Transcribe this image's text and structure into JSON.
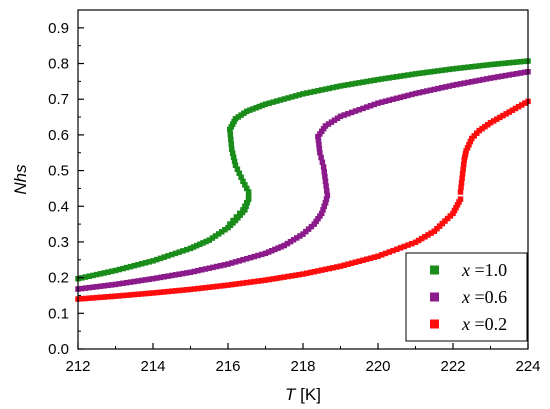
{
  "chart_data": {
    "type": "scatter",
    "title": "",
    "xlabel": {
      "var": "T",
      "unit": " [K]"
    },
    "ylabel": "Nhs",
    "xlim": [
      212,
      224
    ],
    "ylim": [
      0.0,
      0.95
    ],
    "x_ticks": [
      "212",
      "214",
      "216",
      "218",
      "220",
      "222",
      "224"
    ],
    "y_ticks": [
      "0.0",
      "0.1",
      "0.2",
      "0.3",
      "0.4",
      "0.5",
      "0.6",
      "0.7",
      "0.8",
      "0.9"
    ],
    "grid": false,
    "legend_position": "bottom-right",
    "series": [
      {
        "name": {
          "var": "x",
          "value": " =1.0"
        },
        "color": "#1a8c1a",
        "upper_branch": [
          [
            216.05,
            0.615
          ],
          [
            216.2,
            0.645
          ],
          [
            216.5,
            0.666
          ],
          [
            217,
            0.686
          ],
          [
            218,
            0.715
          ],
          [
            219,
            0.737
          ],
          [
            220,
            0.755
          ],
          [
            221,
            0.771
          ],
          [
            222,
            0.785
          ],
          [
            223,
            0.797
          ],
          [
            224,
            0.807
          ]
        ],
        "s_turn": [
          [
            216.05,
            0.615
          ],
          [
            216.1,
            0.56
          ],
          [
            216.2,
            0.515
          ],
          [
            216.4,
            0.47
          ],
          [
            216.55,
            0.44
          ],
          [
            216.55,
            0.42
          ],
          [
            216.4,
            0.39
          ],
          [
            216.05,
            0.35
          ]
        ],
        "lower_branch": [
          [
            212,
            0.197
          ],
          [
            213,
            0.22
          ],
          [
            214,
            0.247
          ],
          [
            215,
            0.282
          ],
          [
            215.5,
            0.305
          ],
          [
            216,
            0.34
          ],
          [
            216.2,
            0.36
          ],
          [
            216.45,
            0.39
          ],
          [
            216.55,
            0.42
          ]
        ]
      },
      {
        "name": {
          "var": "x",
          "value": " =0.6"
        },
        "color": "#8b1a8b",
        "upper_branch": [
          [
            218.4,
            0.595
          ],
          [
            218.6,
            0.625
          ],
          [
            219,
            0.652
          ],
          [
            220,
            0.689
          ],
          [
            221,
            0.716
          ],
          [
            222,
            0.739
          ],
          [
            223,
            0.759
          ],
          [
            224,
            0.777
          ]
        ],
        "s_turn": [
          [
            218.4,
            0.595
          ],
          [
            218.45,
            0.55
          ],
          [
            218.55,
            0.51
          ],
          [
            218.6,
            0.47
          ],
          [
            218.65,
            0.43
          ],
          [
            218.6,
            0.41
          ]
        ],
        "lower_branch": [
          [
            212,
            0.168
          ],
          [
            213,
            0.181
          ],
          [
            214,
            0.197
          ],
          [
            215,
            0.215
          ],
          [
            216,
            0.238
          ],
          [
            217,
            0.268
          ],
          [
            217.5,
            0.29
          ],
          [
            218,
            0.322
          ],
          [
            218.3,
            0.35
          ],
          [
            218.5,
            0.38
          ],
          [
            218.6,
            0.41
          ]
        ]
      },
      {
        "name": {
          "var": "x",
          "value": " =0.2"
        },
        "color": "#ff0d0d",
        "upper_branch": [
          [
            222.3,
            0.53
          ],
          [
            222.35,
            0.555
          ],
          [
            222.5,
            0.59
          ],
          [
            222.7,
            0.612
          ],
          [
            223,
            0.634
          ],
          [
            223.5,
            0.664
          ],
          [
            224,
            0.694
          ]
        ],
        "s_turn": [
          [
            222.2,
            0.44
          ],
          [
            222.3,
            0.53
          ]
        ],
        "lower_branch": [
          [
            212,
            0.14
          ],
          [
            213,
            0.148
          ],
          [
            214,
            0.157
          ],
          [
            215,
            0.167
          ],
          [
            216,
            0.179
          ],
          [
            217,
            0.193
          ],
          [
            218,
            0.21
          ],
          [
            219,
            0.232
          ],
          [
            220,
            0.26
          ],
          [
            221,
            0.299
          ],
          [
            221.5,
            0.33
          ],
          [
            222,
            0.38
          ],
          [
            222.2,
            0.42
          ]
        ]
      }
    ]
  }
}
